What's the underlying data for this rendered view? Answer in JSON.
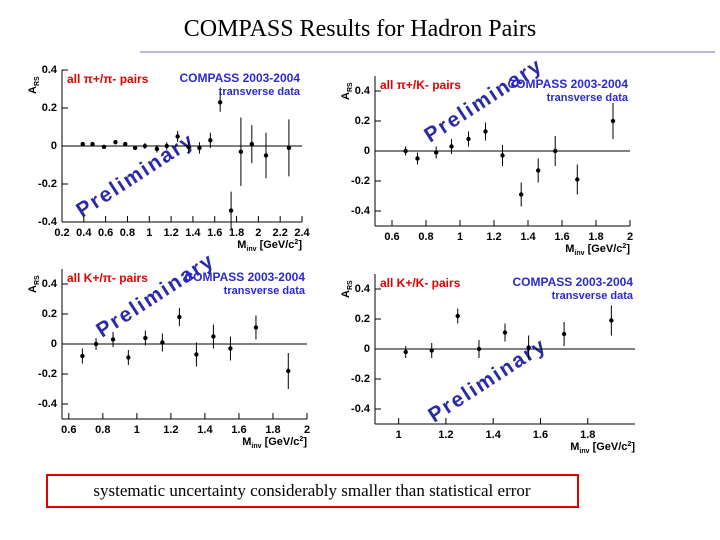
{
  "title": "COMPASS Results for Hadron Pairs",
  "note": "systematic uncertainty considerably smaller than statistical error",
  "chart_data": [
    {
      "type": "errorbar",
      "pairs_label": "all π+/π- pairs",
      "experiment": "COMPASS 2003-2004",
      "data_label": "transverse data",
      "watermark": "Preliminary",
      "y_label": [
        "A",
        "RS"
      ],
      "x_label": [
        "M",
        "inv",
        " [GeV/c",
        "2",
        "]"
      ],
      "color": "#000000",
      "x": [
        0.39,
        0.48,
        0.585,
        0.69,
        0.78,
        0.87,
        0.96,
        1.07,
        1.16,
        1.26,
        1.36,
        1.46,
        1.56,
        1.65,
        1.75,
        1.84,
        1.94,
        2.07,
        2.28
      ],
      "values": [
        0.01,
        0.01,
        -0.005,
        0.02,
        0.01,
        -0.01,
        0,
        -0.015,
        0,
        0.05,
        -0.005,
        -0.01,
        0.03,
        0.23,
        -0.34,
        -0.03,
        0.01,
        -0.05,
        -0.01
      ],
      "errors": [
        0.01,
        0.01,
        0.01,
        0.01,
        0.01,
        0.01,
        0.015,
        0.02,
        0.02,
        0.03,
        0.03,
        0.03,
        0.04,
        0.05,
        0.1,
        0.18,
        0.1,
        0.12,
        0.15
      ],
      "xlim": [
        0.2,
        2.4
      ],
      "ylim": [
        -0.4,
        0.4
      ],
      "xticks": [
        0.2,
        0.4,
        0.6,
        0.8,
        1,
        1.2,
        1.4,
        1.6,
        1.8,
        2,
        2.2,
        2.4
      ],
      "yticks": [
        0.4,
        0.2,
        0,
        -0.2,
        -0.4
      ]
    },
    {
      "type": "errorbar",
      "pairs_label": "all π+/K- pairs",
      "experiment": "COMPASS 2003-2004",
      "data_label": "transverse data",
      "watermark": "Preliminary",
      "y_label": [
        "A",
        "RS"
      ],
      "x_label": [
        "M",
        "inv",
        " [GeV/c",
        "2",
        "]"
      ],
      "color": "#000000",
      "x": [
        0.68,
        0.75,
        0.86,
        0.95,
        1.05,
        1.15,
        1.25,
        1.36,
        1.46,
        1.56,
        1.69,
        1.9
      ],
      "values": [
        0,
        -0.05,
        -0.01,
        0.03,
        0.08,
        0.13,
        -0.03,
        -0.29,
        -0.13,
        0,
        -0.19,
        0.2
      ],
      "errors": [
        0.03,
        0.04,
        0.04,
        0.05,
        0.05,
        0.06,
        0.07,
        0.08,
        0.08,
        0.1,
        0.1,
        0.12
      ],
      "xlim": [
        0.5,
        2
      ],
      "ylim": [
        -0.5,
        0.5
      ],
      "xticks": [
        0.6,
        0.8,
        1,
        1.2,
        1.4,
        1.6,
        1.8,
        2
      ],
      "yticks": [
        0.4,
        0.2,
        0,
        -0.2,
        -0.4
      ]
    },
    {
      "type": "errorbar",
      "pairs_label": "all K+/π- pairs",
      "experiment": "COMPASS 2003-2004",
      "data_label": "transverse data",
      "watermark": "Preliminary",
      "y_label": [
        "A",
        "RS"
      ],
      "x_label": [
        "M",
        "inv",
        " [GeV/c",
        "2",
        "]"
      ],
      "color": "#000000",
      "x": [
        0.68,
        0.76,
        0.86,
        0.95,
        1.05,
        1.15,
        1.25,
        1.35,
        1.45,
        1.55,
        1.7,
        1.89
      ],
      "values": [
        -0.08,
        0,
        0.03,
        -0.09,
        0.04,
        0.01,
        0.18,
        -0.07,
        0.05,
        -0.03,
        0.11,
        -0.18
      ],
      "errors": [
        0.05,
        0.04,
        0.05,
        0.05,
        0.05,
        0.06,
        0.06,
        0.08,
        0.08,
        0.08,
        0.08,
        0.12
      ],
      "xlim": [
        0.56,
        2
      ],
      "ylim": [
        -0.5,
        0.5
      ],
      "xticks": [
        0.6,
        0.8,
        1,
        1.2,
        1.4,
        1.6,
        1.8,
        2
      ],
      "yticks": [
        0.4,
        0.2,
        0,
        -0.2,
        -0.4
      ]
    },
    {
      "type": "errorbar",
      "pairs_label": "all K+/K- pairs",
      "experiment": "COMPASS 2003-2004",
      "data_label": "transverse data",
      "watermark": "Preliminary",
      "y_label": [
        "A",
        "RS"
      ],
      "x_label": [
        "M",
        "inv",
        " [GeV/c",
        "2",
        "]"
      ],
      "color": "#000000",
      "x": [
        1.03,
        1.14,
        1.25,
        1.34,
        1.45,
        1.55,
        1.7,
        1.9
      ],
      "values": [
        -0.02,
        -0.01,
        0.22,
        0,
        0.11,
        0.01,
        0.1,
        0.19
      ],
      "errors": [
        0.04,
        0.05,
        0.05,
        0.06,
        0.06,
        0.08,
        0.08,
        0.1
      ],
      "xlim": [
        0.9,
        2
      ],
      "ylim": [
        -0.5,
        0.5
      ],
      "xticks": [
        1,
        1.2,
        1.4,
        1.6,
        1.8
      ],
      "yticks": [
        0.4,
        0.2,
        0,
        -0.2,
        -0.4
      ]
    }
  ]
}
